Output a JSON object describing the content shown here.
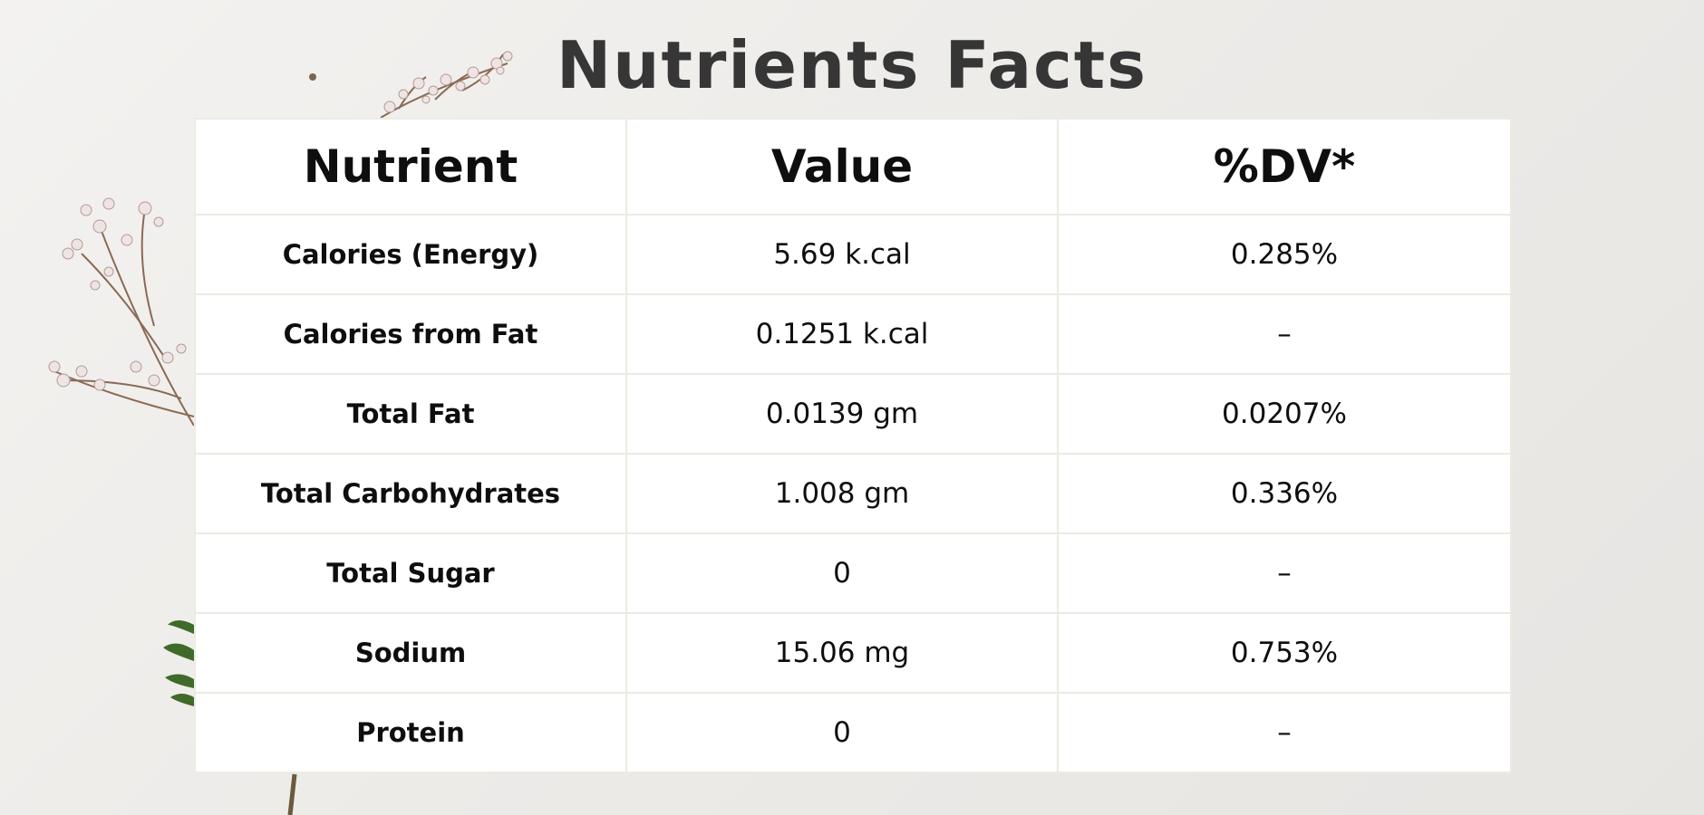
{
  "page": {
    "title": "Nutrients Facts"
  },
  "table": {
    "headers": [
      "Nutrient",
      "Value",
      "%DV*"
    ],
    "rows": [
      [
        "Calories (Energy)",
        "5.69 k.cal",
        "0.285%"
      ],
      [
        "Calories from Fat",
        "0.1251 k.cal",
        "–"
      ],
      [
        "Total Fat",
        "0.0139 gm",
        "0.0207%"
      ],
      [
        "Total Carbohydrates",
        "1.008 gm",
        "0.336%"
      ],
      [
        "Total Sugar",
        "0",
        "–"
      ],
      [
        "Sodium",
        "15.06 mg",
        "0.753%"
      ],
      [
        "Protein",
        "0",
        "–"
      ]
    ]
  },
  "colors": {
    "background": "#efeeec",
    "title": "#363636",
    "table_border": "#ecebe2",
    "text": "#0e0e0e",
    "flower_petal": "#efe4e4",
    "stem": "#8a6a55",
    "leaf": "#3f6a2a"
  }
}
